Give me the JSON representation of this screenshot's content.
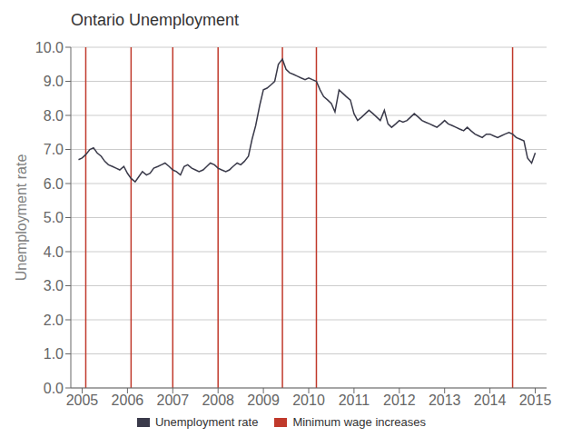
{
  "chart_data": {
    "type": "line",
    "title": "Ontario Unemployment",
    "ylabel": "Unemployment rate",
    "xlim": [
      2004.75,
      2015.25
    ],
    "xticks": [
      2005,
      2006,
      2007,
      2008,
      2009,
      2010,
      2011,
      2012,
      2013,
      2014,
      2015
    ],
    "ylim": [
      0.0,
      10.0
    ],
    "yticks": [
      {
        "value": 0.0,
        "label": "0.0"
      },
      {
        "value": 1.0,
        "label": "1.0"
      },
      {
        "value": 2.0,
        "label": "2.0"
      },
      {
        "value": 3.0,
        "label": "3.0"
      },
      {
        "value": 4.0,
        "label": "4.0"
      },
      {
        "value": 5.0,
        "label": "5.0"
      },
      {
        "value": 6.0,
        "label": "6.0"
      },
      {
        "value": 7.0,
        "label": "7.0"
      },
      {
        "value": 8.0,
        "label": "8.0"
      },
      {
        "value": 9.0,
        "label": "9.0"
      },
      {
        "value": 10.0,
        "label": "10.0"
      }
    ],
    "grid": true,
    "legend": "bottom",
    "x": [
      2004.92,
      2005.0,
      2005.08,
      2005.17,
      2005.25,
      2005.33,
      2005.42,
      2005.5,
      2005.58,
      2005.67,
      2005.75,
      2005.83,
      2005.92,
      2006.0,
      2006.08,
      2006.17,
      2006.25,
      2006.33,
      2006.42,
      2006.5,
      2006.58,
      2006.67,
      2006.75,
      2006.83,
      2006.92,
      2007.0,
      2007.08,
      2007.17,
      2007.25,
      2007.33,
      2007.42,
      2007.5,
      2007.58,
      2007.67,
      2007.75,
      2007.83,
      2007.92,
      2008.0,
      2008.08,
      2008.17,
      2008.25,
      2008.33,
      2008.42,
      2008.5,
      2008.58,
      2008.67,
      2008.75,
      2008.83,
      2008.92,
      2009.0,
      2009.08,
      2009.17,
      2009.25,
      2009.33,
      2009.42,
      2009.5,
      2009.58,
      2009.67,
      2009.75,
      2009.83,
      2009.92,
      2010.0,
      2010.08,
      2010.17,
      2010.25,
      2010.33,
      2010.42,
      2010.5,
      2010.58,
      2010.67,
      2010.75,
      2010.83,
      2010.92,
      2011.0,
      2011.08,
      2011.17,
      2011.25,
      2011.33,
      2011.42,
      2011.5,
      2011.58,
      2011.67,
      2011.75,
      2011.83,
      2011.92,
      2012.0,
      2012.08,
      2012.17,
      2012.25,
      2012.33,
      2012.42,
      2012.5,
      2012.58,
      2012.67,
      2012.75,
      2012.83,
      2012.92,
      2013.0,
      2013.08,
      2013.17,
      2013.25,
      2013.33,
      2013.42,
      2013.5,
      2013.58,
      2013.67,
      2013.75,
      2013.83,
      2013.92,
      2014.0,
      2014.08,
      2014.17,
      2014.25,
      2014.33,
      2014.42,
      2014.5,
      2014.58,
      2014.67,
      2014.75,
      2014.83,
      2014.92,
      2015.0
    ],
    "series": [
      {
        "name": "Unemployment rate",
        "color": "#3a3a4a",
        "values": [
          6.7,
          6.75,
          6.85,
          7.0,
          7.05,
          6.9,
          6.8,
          6.65,
          6.55,
          6.5,
          6.45,
          6.4,
          6.5,
          6.3,
          6.15,
          6.05,
          6.2,
          6.35,
          6.25,
          6.3,
          6.45,
          6.5,
          6.55,
          6.6,
          6.5,
          6.4,
          6.35,
          6.25,
          6.5,
          6.55,
          6.45,
          6.4,
          6.35,
          6.4,
          6.5,
          6.6,
          6.55,
          6.45,
          6.4,
          6.35,
          6.4,
          6.5,
          6.6,
          6.55,
          6.65,
          6.8,
          7.3,
          7.7,
          8.3,
          8.75,
          8.8,
          8.9,
          9.0,
          9.5,
          9.65,
          9.35,
          9.25,
          9.2,
          9.15,
          9.1,
          9.05,
          9.1,
          9.05,
          9.0,
          8.75,
          8.55,
          8.45,
          8.35,
          8.1,
          8.75,
          8.65,
          8.55,
          8.45,
          8.05,
          7.85,
          7.95,
          8.05,
          8.15,
          8.05,
          7.95,
          7.85,
          8.15,
          7.75,
          7.65,
          7.75,
          7.85,
          7.8,
          7.85,
          7.95,
          8.05,
          7.95,
          7.85,
          7.8,
          7.75,
          7.7,
          7.65,
          7.75,
          7.85,
          7.75,
          7.7,
          7.65,
          7.6,
          7.55,
          7.65,
          7.55,
          7.45,
          7.4,
          7.35,
          7.45,
          7.45,
          7.4,
          7.35,
          7.4,
          7.45,
          7.5,
          7.45,
          7.35,
          7.3,
          7.25,
          6.75,
          6.6,
          6.9
        ]
      }
    ],
    "vlines": {
      "name": "Minimum wage increases",
      "color": "#c0392b",
      "x": [
        2005.08,
        2006.08,
        2007.0,
        2008.0,
        2009.42,
        2010.17,
        2014.5
      ]
    }
  }
}
